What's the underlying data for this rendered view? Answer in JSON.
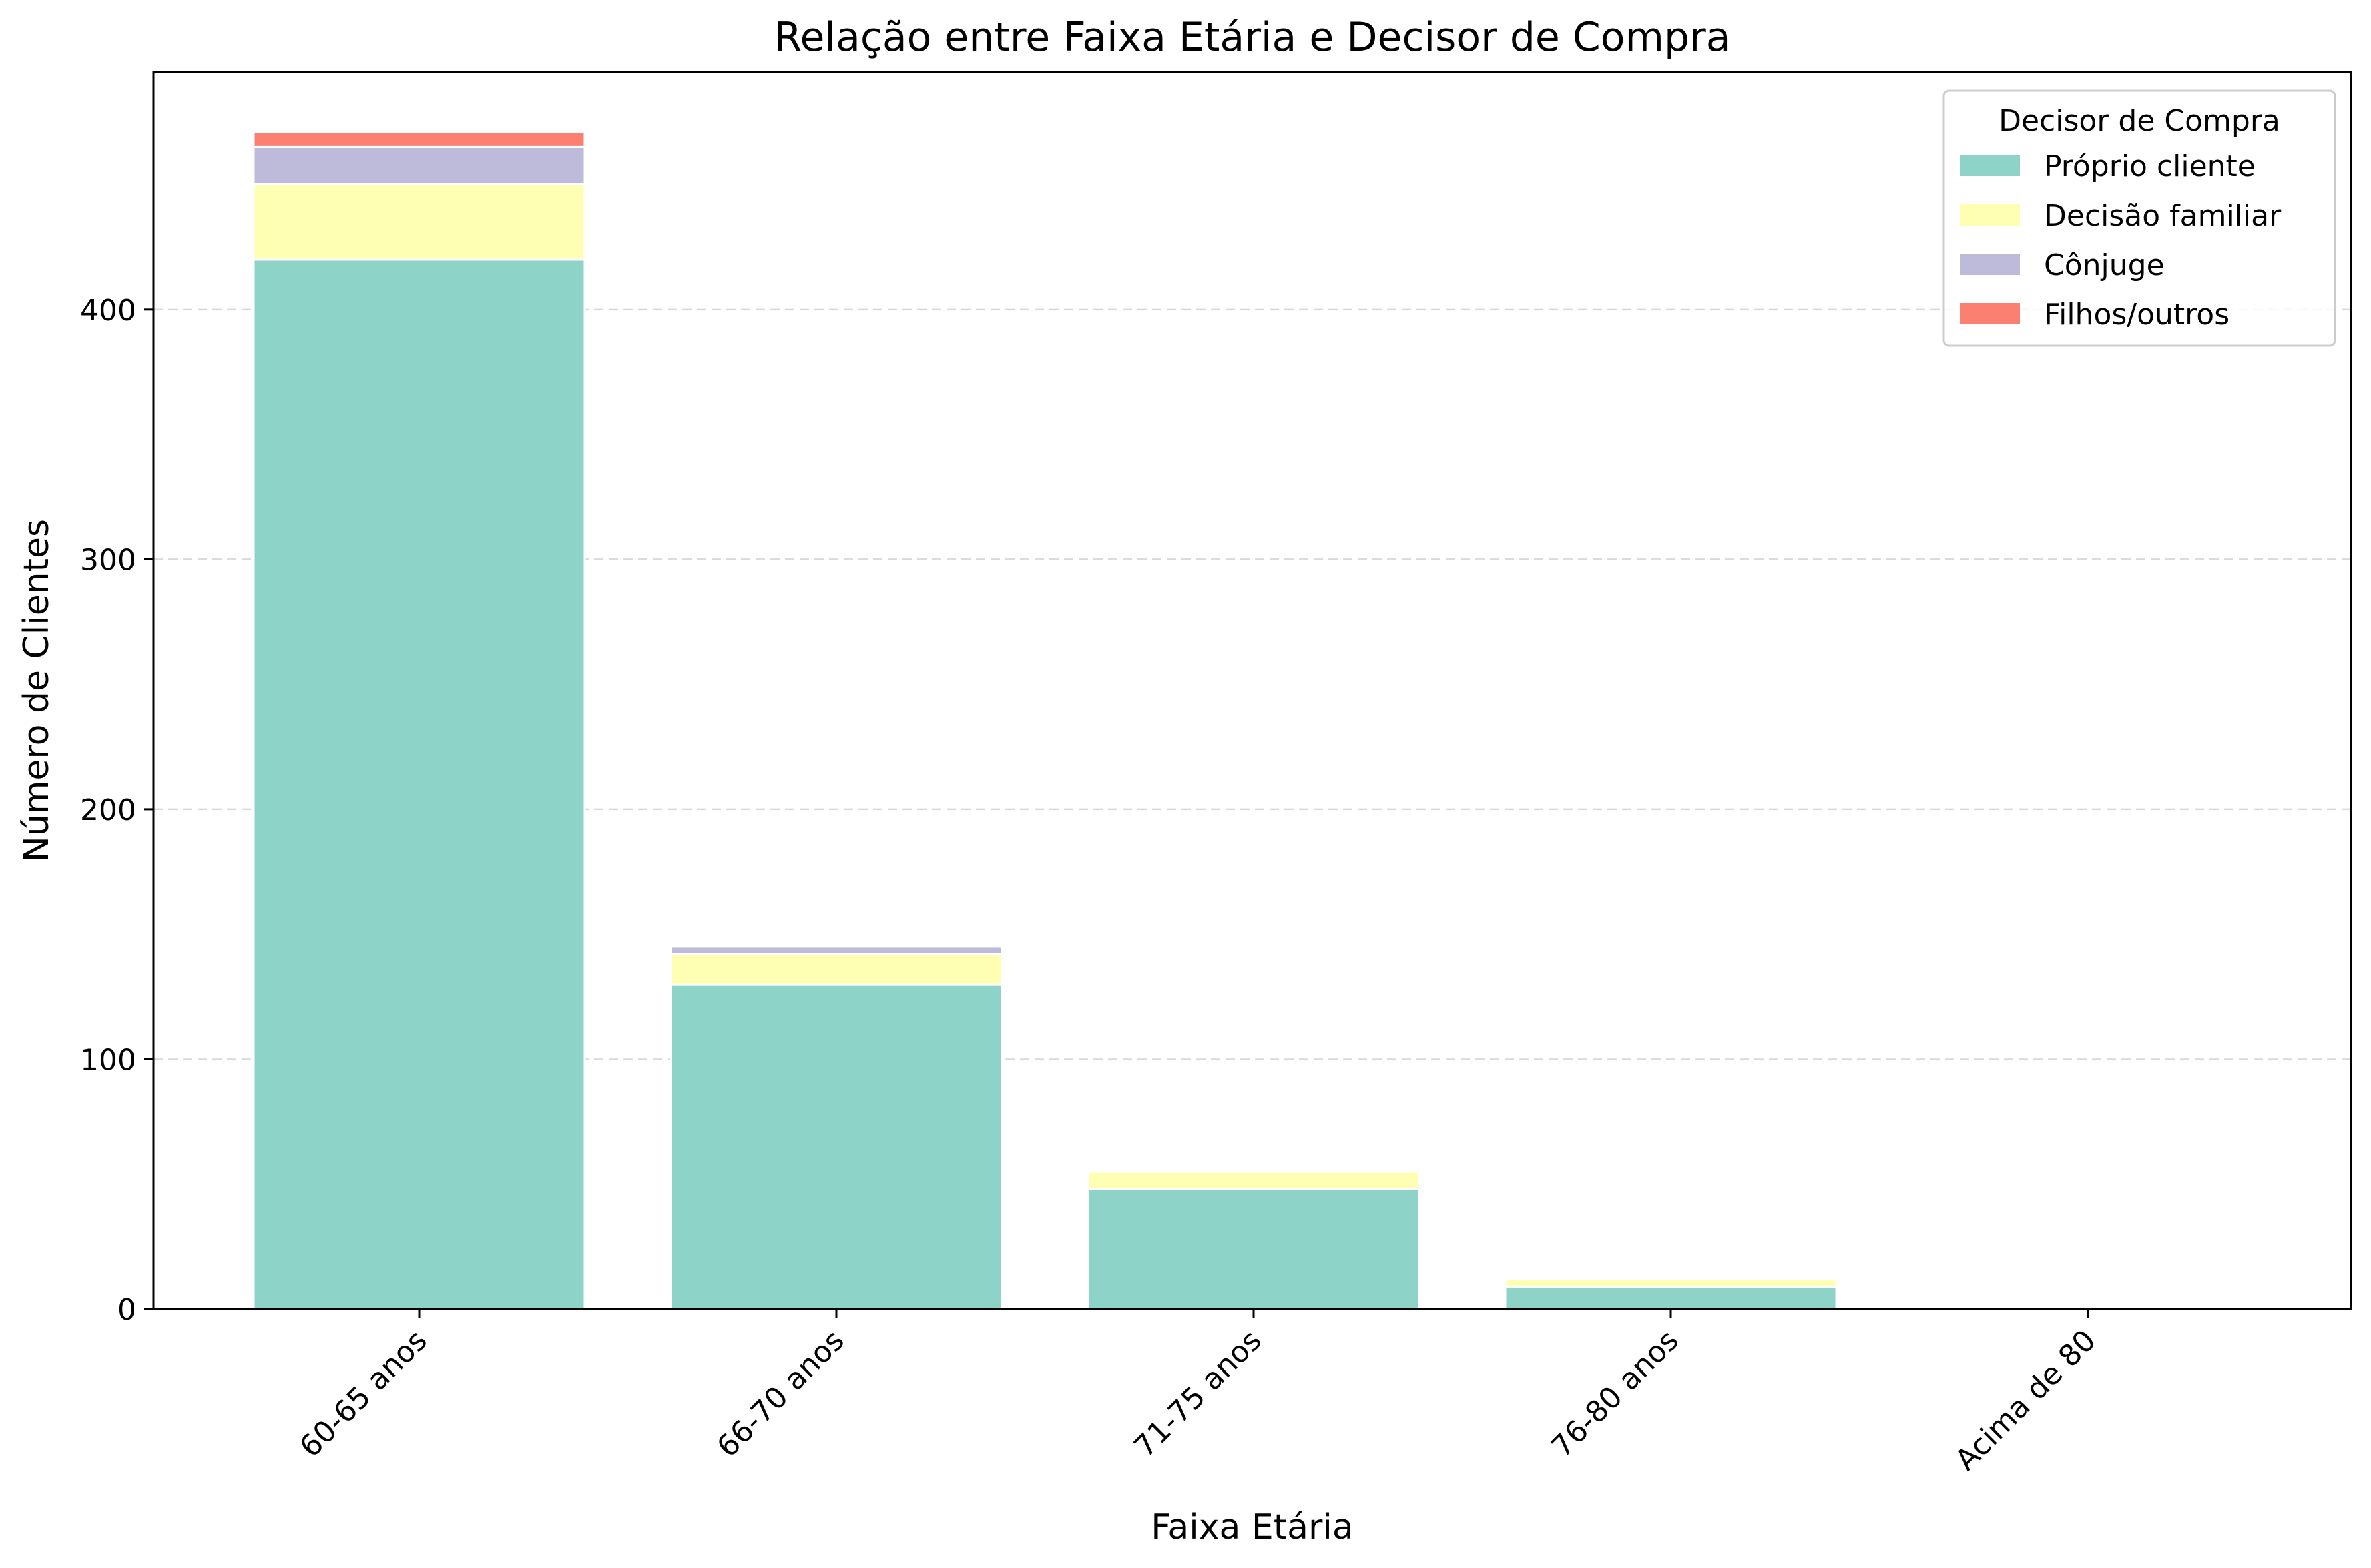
{
  "chart_data": {
    "type": "bar",
    "stacked": true,
    "title": "Relação entre Faixa Etária e Decisor de Compra",
    "xlabel": "Faixa Etária",
    "ylabel": "Número de Clientes",
    "categories": [
      "60-65 anos",
      "66-70 anos",
      "71-75 anos",
      "76-80 anos",
      "Acima de 80"
    ],
    "ylim": [
      0,
      495
    ],
    "yticks": [
      0,
      100,
      200,
      300,
      400
    ],
    "grid": "y-dashed",
    "legend": {
      "title": "Decisor de Compra",
      "placement": "top-right"
    },
    "series": [
      {
        "name": "Próprio cliente",
        "color": "#8dd3c7",
        "values": [
          420,
          130,
          48,
          9,
          0
        ]
      },
      {
        "name": "Decisão familiar",
        "color": "#ffffb3",
        "values": [
          30,
          12,
          7,
          3,
          0
        ]
      },
      {
        "name": "Cônjuge",
        "color": "#bebada",
        "values": [
          15,
          3,
          0,
          0,
          0
        ]
      },
      {
        "name": "Filhos/outros",
        "color": "#fb8072",
        "values": [
          6,
          0,
          0,
          0,
          0
        ]
      }
    ]
  }
}
